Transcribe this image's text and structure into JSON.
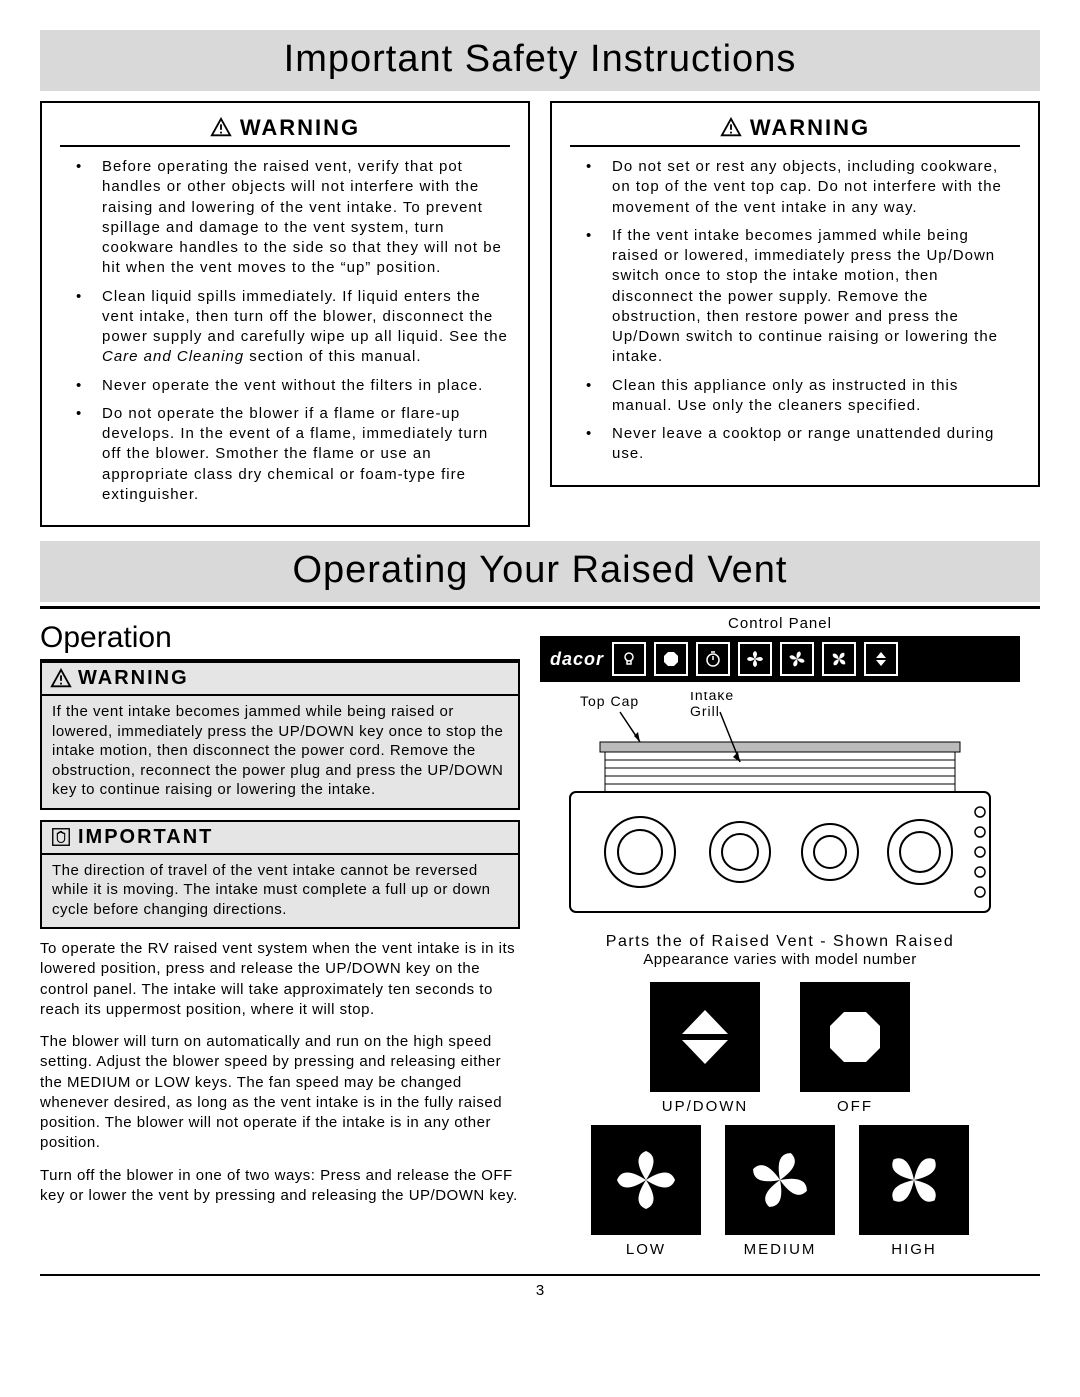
{
  "banner1": "Important Safety Instructions",
  "banner2": "Operating Your Raised Vent",
  "warning_label": "WARNING",
  "important_label": "IMPORTANT",
  "left_warnings": [
    "Before operating the raised vent, verify that pot handles or other objects will not interfere with the raising and lowering of the vent intake. To prevent spillage and damage to the vent system, turn cookware handles to the side so that they will not be hit when the vent moves to the “up” position.",
    "Clean liquid spills immediately. If liquid enters the vent intake, then turn off the blower, disconnect the power supply and carefully wipe up all liquid. See the <span class=\"italic\">Care and Cleaning</span> section of this manual.",
    "Never operate the vent without the filters in place.",
    "Do not operate the blower if a flame or flare-up develops. In the event of a flame, immediately turn off the blower. Smother the flame or use an appropriate class dry chemical or foam-type fire extinguisher."
  ],
  "right_warnings": [
    "Do not set or rest any objects, including cookware, on top of the vent top cap. Do not interfere with the movement of the vent intake in any way.",
    "If the vent intake becomes jammed while being raised or lowered, immediately press the Up/Down switch once to stop the intake motion, then disconnect the power supply. Remove the obstruction, then restore power and press the Up/Down switch to continue raising or lowering the intake.",
    "Clean this appliance only as instructed in this manual. Use only the cleaners specified.",
    "Never leave a cooktop or range unattended during use."
  ],
  "operation_head": "Operation",
  "op_warning_body": "If the vent intake becomes jammed while being raised or lowered, immediately press the UP/DOWN key once to stop the intake motion, then disconnect the power cord. Remove the obstruction, reconnect the power plug and press the UP/DOWN key to continue raising or lowering the intake.",
  "op_important_body": "The direction of travel of the vent intake cannot be reversed while it is moving. The intake must complete a full up or down cycle before changing directions.",
  "op_p1": "To operate the RV raised vent system when the vent intake is in its lowered position, press and release the UP/DOWN key on the control panel. The intake will take approximately ten seconds to reach its uppermost position, where it will stop.",
  "op_p2": "The blower will turn on automatically and run on the high speed setting. Adjust the blower speed by pressing and releasing either the MEDIUM or LOW keys. The fan speed may be changed whenever desired, as long as the vent intake is in the fully raised position. The blower will not operate if the intake is in any other position.",
  "op_p3": "Turn off the blower in one of two ways: Press and release the OFF key or lower the vent by pressing and releasing the UP/DOWN key.",
  "ctrl_panel_label": "Control Panel",
  "brand": "dacor",
  "top_cap_label": "Top Cap",
  "intake_grill_label": "Intake\nGrill",
  "parts_title": "Parts the of Raised Vent - Shown Raised",
  "parts_sub": "Appearance varies with model number",
  "btn_updown": "UP/DOWN",
  "btn_off": "OFF",
  "btn_low": "LOW",
  "btn_medium": "MEDIUM",
  "btn_high": "HIGH",
  "page_num": "3",
  "colors": {
    "banner_bg": "#d9d9d9",
    "box_bg": "#e5e5e5",
    "black": "#000000",
    "white": "#ffffff"
  }
}
